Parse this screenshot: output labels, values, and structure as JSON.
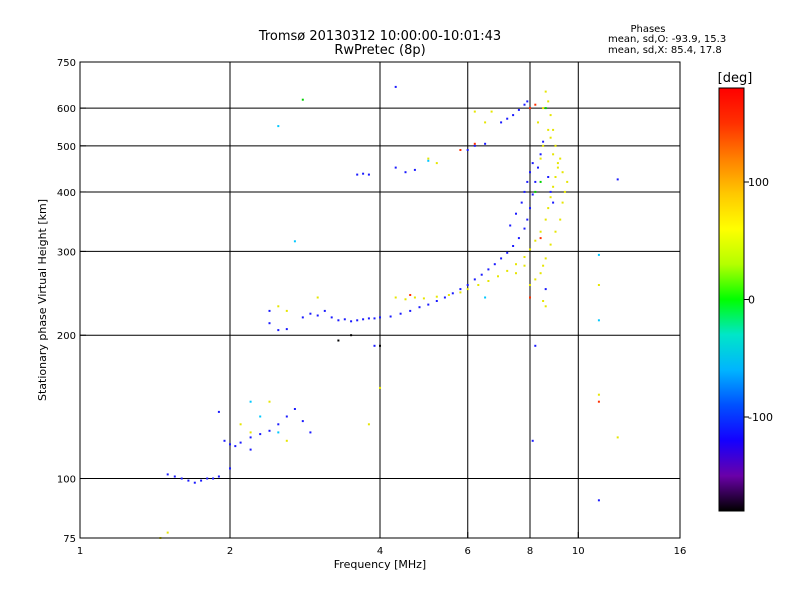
{
  "chart_data": {
    "type": "scatter",
    "title": "Tromsø 20130312 10:00:00-10:01:43",
    "subtitle": "RwPretec (8p)",
    "xlabel": "Frequency [MHz]",
    "ylabel": "Stationary phase Virtual Height [km]",
    "x_scale": "log",
    "y_scale": "log",
    "xlim": [
      1,
      16
    ],
    "ylim": [
      75,
      750
    ],
    "x_ticks": [
      1,
      2,
      4,
      6,
      8,
      10,
      16
    ],
    "y_ticks": [
      75,
      100,
      200,
      300,
      400,
      500,
      600,
      750
    ],
    "x_grid": [
      2,
      4,
      6,
      8,
      10
    ],
    "y_grid": [
      100,
      200,
      300,
      400,
      500,
      600
    ],
    "grid": true,
    "legend": {
      "title": "Phases",
      "line1": "mean, sd,O: -93.9, 15.3",
      "line2": "mean, sd,X:  85.4, 17.8",
      "placement": "top-right"
    },
    "colorbar": {
      "label": "[deg]",
      "min": -180,
      "max": 180,
      "ticks": [
        100,
        0,
        -100
      ],
      "colors": [
        "#000000",
        "#6a00a8",
        "#1400ff",
        "#0050ff",
        "#00b4ff",
        "#00e6c8",
        "#00ff00",
        "#b4ff00",
        "#ffff00",
        "#ffc800",
        "#ff8000",
        "#ff3000",
        "#ff0000"
      ]
    },
    "series": [
      {
        "color": "#1a1aff",
        "points": [
          [
            1.5,
            102
          ],
          [
            1.55,
            101
          ],
          [
            1.6,
            100
          ],
          [
            1.65,
            99
          ],
          [
            1.7,
            98
          ],
          [
            1.75,
            99
          ],
          [
            1.8,
            100
          ],
          [
            1.85,
            100
          ],
          [
            1.9,
            101
          ],
          [
            1.95,
            120
          ],
          [
            2.0,
            118
          ],
          [
            2.05,
            117
          ],
          [
            2.1,
            119
          ],
          [
            2.2,
            122
          ],
          [
            2.3,
            124
          ],
          [
            2.4,
            126
          ],
          [
            2.5,
            130
          ],
          [
            2.6,
            135
          ],
          [
            2.7,
            140
          ],
          [
            2.8,
            132
          ],
          [
            2.9,
            125
          ],
          [
            2.4,
            212
          ],
          [
            2.5,
            205
          ],
          [
            2.6,
            206
          ],
          [
            2.8,
            218
          ],
          [
            2.9,
            222
          ],
          [
            3.0,
            220
          ],
          [
            3.1,
            225
          ],
          [
            3.2,
            218
          ],
          [
            3.3,
            215
          ],
          [
            3.4,
            216
          ],
          [
            3.5,
            214
          ],
          [
            3.6,
            215
          ],
          [
            3.7,
            216
          ],
          [
            3.8,
            217
          ],
          [
            3.9,
            217
          ],
          [
            4.0,
            218
          ],
          [
            4.2,
            219
          ],
          [
            4.4,
            222
          ],
          [
            4.6,
            225
          ],
          [
            4.8,
            229
          ],
          [
            5.0,
            232
          ],
          [
            5.2,
            236
          ],
          [
            5.4,
            240
          ],
          [
            5.6,
            245
          ],
          [
            5.8,
            250
          ],
          [
            6.0,
            255
          ],
          [
            6.2,
            262
          ],
          [
            6.4,
            268
          ],
          [
            6.6,
            275
          ],
          [
            6.8,
            282
          ],
          [
            7.0,
            290
          ],
          [
            7.2,
            298
          ],
          [
            7.4,
            308
          ],
          [
            7.6,
            320
          ],
          [
            7.8,
            335
          ],
          [
            7.9,
            350
          ],
          [
            8.0,
            370
          ],
          [
            8.1,
            395
          ],
          [
            8.2,
            420
          ],
          [
            8.3,
            450
          ],
          [
            8.4,
            480
          ],
          [
            8.5,
            510
          ],
          [
            7.3,
            340
          ],
          [
            7.5,
            360
          ],
          [
            7.7,
            380
          ],
          [
            7.8,
            400
          ],
          [
            7.9,
            420
          ],
          [
            8.0,
            440
          ],
          [
            8.1,
            460
          ],
          [
            7.0,
            560
          ],
          [
            7.2,
            570
          ],
          [
            7.4,
            580
          ],
          [
            7.6,
            595
          ],
          [
            7.8,
            610
          ],
          [
            7.9,
            620
          ],
          [
            8.0,
            600
          ],
          [
            6.0,
            490
          ],
          [
            6.2,
            500
          ],
          [
            4.3,
            450
          ],
          [
            4.5,
            440
          ],
          [
            4.7,
            445
          ],
          [
            3.6,
            435
          ],
          [
            3.8,
            435
          ],
          [
            3.7,
            437
          ],
          [
            4.3,
            665
          ],
          [
            2.4,
            225
          ],
          [
            3.9,
            190
          ],
          [
            8.2,
            190
          ],
          [
            8.1,
            120
          ],
          [
            11.0,
            90
          ],
          [
            12.0,
            425
          ],
          [
            8.6,
            250
          ],
          [
            8.8,
            400
          ],
          [
            8.7,
            430
          ],
          [
            8.9,
            380
          ],
          [
            6.5,
            505
          ],
          [
            2.0,
            105
          ],
          [
            1.9,
            138
          ],
          [
            2.2,
            115
          ]
        ]
      },
      {
        "color": "#e6e600",
        "points": [
          [
            4.3,
            240
          ],
          [
            4.5,
            238
          ],
          [
            4.7,
            240
          ],
          [
            4.9,
            239
          ],
          [
            5.2,
            241
          ],
          [
            5.5,
            243
          ],
          [
            5.8,
            246
          ],
          [
            6.0,
            250
          ],
          [
            6.3,
            255
          ],
          [
            6.6,
            260
          ],
          [
            6.9,
            266
          ],
          [
            7.2,
            273
          ],
          [
            7.5,
            282
          ],
          [
            7.8,
            292
          ],
          [
            8.0,
            303
          ],
          [
            8.2,
            316
          ],
          [
            8.4,
            330
          ],
          [
            8.6,
            350
          ],
          [
            8.7,
            370
          ],
          [
            8.8,
            390
          ],
          [
            8.9,
            410
          ],
          [
            9.0,
            430
          ],
          [
            9.1,
            450
          ],
          [
            9.2,
            470
          ],
          [
            9.0,
            500
          ],
          [
            8.9,
            540
          ],
          [
            8.8,
            580
          ],
          [
            8.7,
            620
          ],
          [
            8.6,
            650
          ],
          [
            8.5,
            600
          ],
          [
            8.3,
            560
          ],
          [
            9.3,
            380
          ],
          [
            9.4,
            400
          ],
          [
            9.2,
            350
          ],
          [
            9.0,
            330
          ],
          [
            8.8,
            310
          ],
          [
            8.6,
            290
          ],
          [
            8.5,
            280
          ],
          [
            8.4,
            270
          ],
          [
            8.2,
            262
          ],
          [
            8.0,
            255
          ],
          [
            9.5,
            420
          ],
          [
            9.3,
            440
          ],
          [
            9.1,
            460
          ],
          [
            8.9,
            480
          ],
          [
            8.8,
            520
          ],
          [
            8.7,
            540
          ],
          [
            8.5,
            500
          ],
          [
            8.4,
            470
          ],
          [
            7.8,
            280
          ],
          [
            7.5,
            270
          ],
          [
            5.0,
            470
          ],
          [
            5.2,
            460
          ],
          [
            6.2,
            590
          ],
          [
            6.5,
            560
          ],
          [
            6.7,
            590
          ],
          [
            2.5,
            230
          ],
          [
            2.6,
            225
          ],
          [
            3.0,
            240
          ],
          [
            2.1,
            130
          ],
          [
            2.2,
            125
          ],
          [
            2.6,
            120
          ],
          [
            1.5,
            77
          ],
          [
            1.45,
            75
          ],
          [
            3.8,
            130
          ],
          [
            4.0,
            155
          ],
          [
            11.0,
            150
          ],
          [
            11.0,
            255
          ],
          [
            12.0,
            122
          ],
          [
            8.5,
            236
          ],
          [
            8.6,
            230
          ],
          [
            2.4,
            145
          ]
        ]
      },
      {
        "color": "#00c8ff",
        "points": [
          [
            2.5,
            550
          ],
          [
            2.7,
            315
          ],
          [
            2.2,
            145
          ],
          [
            2.3,
            135
          ],
          [
            2.5,
            125
          ],
          [
            11.0,
            295
          ],
          [
            11.0,
            215
          ],
          [
            6.5,
            240
          ],
          [
            5.0,
            465
          ]
        ]
      },
      {
        "color": "#ff3000",
        "points": [
          [
            8.2,
            610
          ],
          [
            8.0,
            600
          ],
          [
            6.2,
            505
          ],
          [
            5.8,
            490
          ],
          [
            4.6,
            243
          ],
          [
            8.4,
            320
          ],
          [
            11.0,
            145
          ],
          [
            8.0,
            240
          ]
        ]
      },
      {
        "color": "#00d200",
        "points": [
          [
            2.8,
            625
          ],
          [
            8.6,
            600
          ],
          [
            8.4,
            420
          ],
          [
            8.2,
            400
          ]
        ]
      },
      {
        "color": "#000000",
        "points": [
          [
            3.5,
            200
          ],
          [
            4.0,
            190
          ],
          [
            3.3,
            195
          ]
        ]
      }
    ]
  }
}
